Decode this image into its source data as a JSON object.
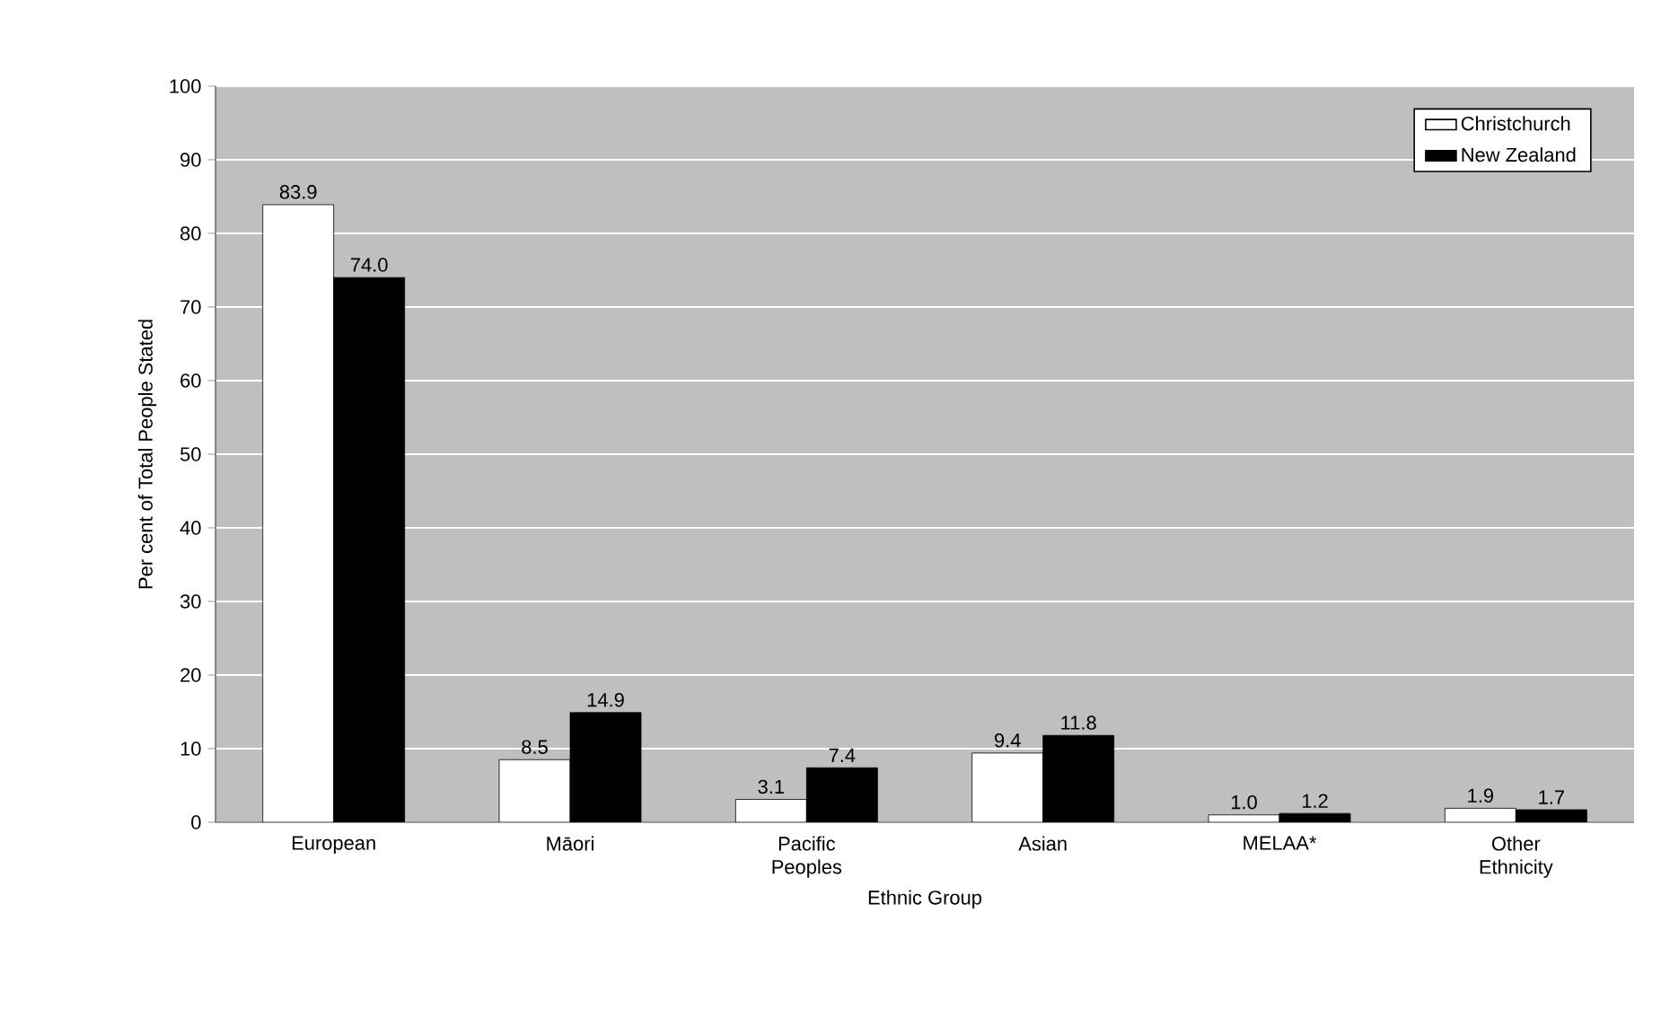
{
  "chart_data": {
    "type": "bar",
    "xlabel": "Ethnic Group",
    "ylabel": "Per cent of Total People Stated",
    "categories": [
      "European",
      "Māori",
      "Pacific Peoples",
      "Asian",
      "MELAA*",
      "Other Ethnicity"
    ],
    "series": [
      {
        "name": "Christchurch",
        "color": "#ffffff",
        "values": [
          83.9,
          8.5,
          3.1,
          9.4,
          1.0,
          1.9
        ],
        "value_labels": [
          "83.9",
          "8.5",
          "3.1",
          "9.4",
          "1.0",
          "1.9"
        ]
      },
      {
        "name": "New Zealand",
        "color": "#000000",
        "values": [
          74.0,
          14.9,
          7.4,
          11.8,
          1.2,
          1.7
        ],
        "value_labels": [
          "74.0",
          "14.9",
          "7.4",
          "11.8",
          "1.2",
          "1.7"
        ]
      }
    ],
    "ylim": [
      0,
      100
    ],
    "yticks": [
      0,
      10,
      20,
      30,
      40,
      50,
      60,
      70,
      80,
      90,
      100
    ],
    "grid": "y",
    "legend": "top right"
  }
}
